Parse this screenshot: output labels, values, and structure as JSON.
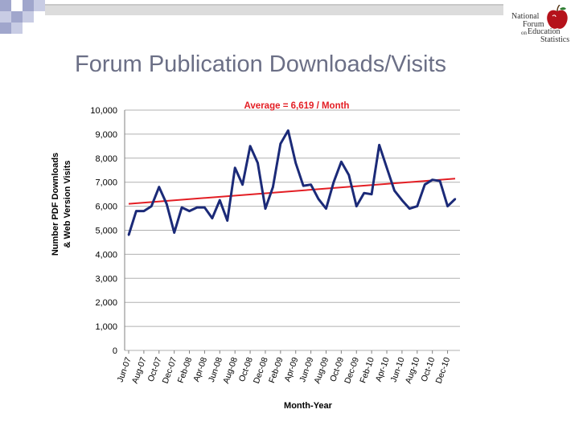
{
  "slide_title": "Forum Publication Downloads/Visits",
  "logo": {
    "line1": "National",
    "line2": "Forum",
    "line3": "on",
    "line4": "Education",
    "line5": "Statistics"
  },
  "chart_data": {
    "type": "line",
    "title": "Average = 6,619 / Month",
    "xlabel": "Month-Year",
    "ylabel_line1": "Number  PDF Downloads",
    "ylabel_line2": "& Web Version Visits",
    "ylim": [
      0,
      10000
    ],
    "y_ticks": [
      "10,000",
      "9,000",
      "8,000",
      "7,000",
      "6,000",
      "5,000",
      "4,000",
      "3,000",
      "2,000",
      "1,000",
      "0"
    ],
    "y_tick_values": [
      10000,
      9000,
      8000,
      7000,
      6000,
      5000,
      4000,
      3000,
      2000,
      1000,
      0
    ],
    "grid": true,
    "x_ticks": [
      "Jun-07",
      "Aug-07",
      "Oct-07",
      "Dec-07",
      "Feb-08",
      "Apr-08",
      "Jun-08",
      "Aug-08",
      "Oct-08",
      "Dec-08",
      "Feb-09",
      "Apr-09",
      "Jun-09",
      "Aug-09",
      "Oct-09",
      "Dec-09",
      "Feb-10",
      "Apr-10",
      "Jun-10",
      "Aug-10",
      "Oct-10",
      "Dec-10"
    ],
    "series": [
      {
        "color": "#1b2a78",
        "values": [
          4800,
          5800,
          5800,
          6000,
          6800,
          6100,
          4900,
          5950,
          5800,
          5950,
          5950,
          5500,
          6250,
          5400,
          7600,
          6900,
          8500,
          7800,
          5900,
          6800,
          8600,
          9150,
          7800,
          6850,
          6900,
          6300,
          5900,
          7000,
          7850,
          7300,
          6000,
          6550,
          6500,
          8550,
          7600,
          6650,
          6250,
          5900,
          6000,
          6900,
          7100,
          7050,
          6000,
          6300
        ]
      },
      {
        "color": "#e31e24",
        "trend": true,
        "start_value": 6100,
        "end_value": 7150
      }
    ]
  }
}
